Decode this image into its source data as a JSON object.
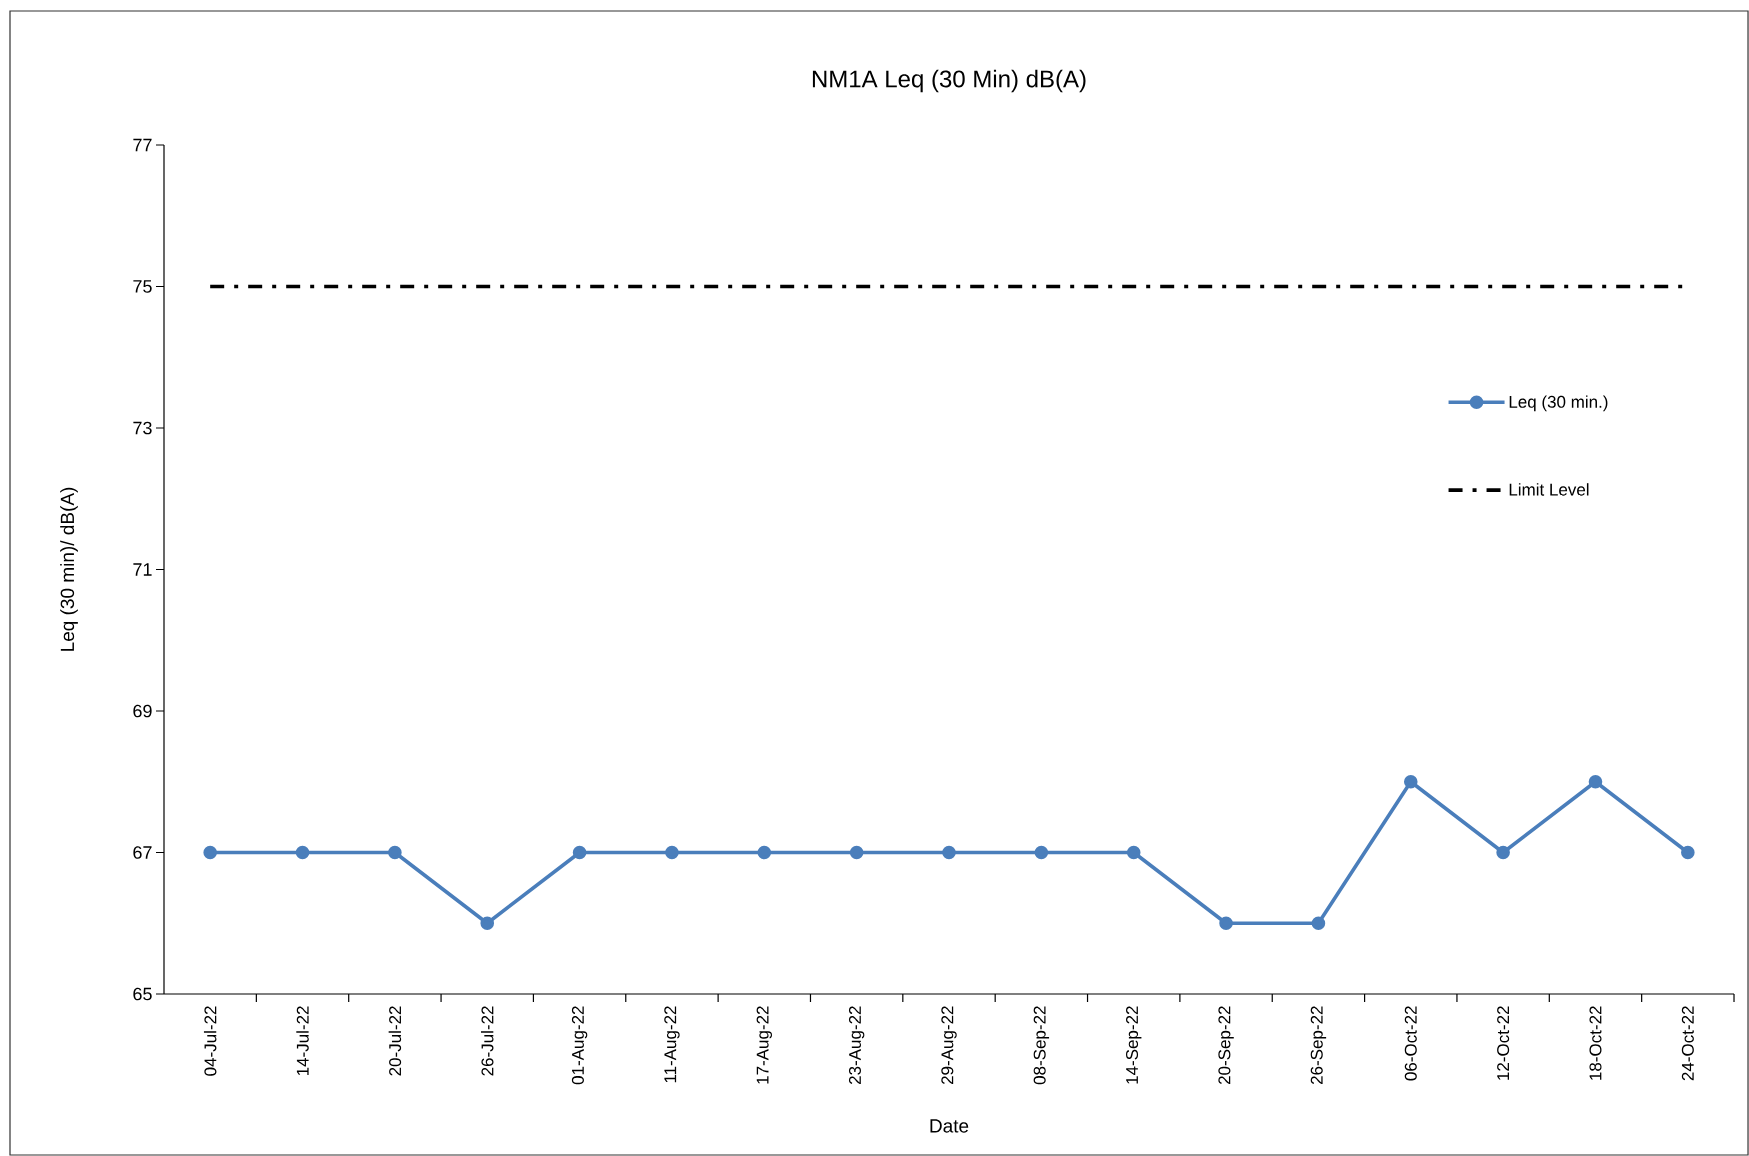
{
  "chart_data": {
    "type": "line",
    "title": "NM1A Leq (30 Min) dB(A)",
    "xlabel": "Date",
    "ylabel": "Leq (30 min)/ dB(A)",
    "categories": [
      "04-Jul-22",
      "14-Jul-22",
      "20-Jul-22",
      "26-Jul-22",
      "01-Aug-22",
      "11-Aug-22",
      "17-Aug-22",
      "23-Aug-22",
      "29-Aug-22",
      "08-Sep-22",
      "14-Sep-22",
      "20-Sep-22",
      "26-Sep-22",
      "06-Oct-22",
      "12-Oct-22",
      "18-Oct-22",
      "24-Oct-22"
    ],
    "series": [
      {
        "name": "Leq (30 min.)",
        "color": "#4a7ebb",
        "marker": "circle",
        "line_style": "solid",
        "values": [
          67,
          67,
          67,
          66,
          67,
          67,
          67,
          67,
          67,
          67,
          67,
          66,
          66,
          68,
          67,
          68,
          67
        ]
      },
      {
        "name": "Limit Level",
        "color": "#000000",
        "marker": "none",
        "line_style": "dashed",
        "values": [
          75,
          75,
          75,
          75,
          75,
          75,
          75,
          75,
          75,
          75,
          75,
          75,
          75,
          75,
          75,
          75,
          75
        ]
      }
    ],
    "ylim": [
      65,
      77
    ],
    "yticks": [
      65,
      67,
      69,
      71,
      73,
      75,
      77
    ],
    "legend": "right"
  }
}
